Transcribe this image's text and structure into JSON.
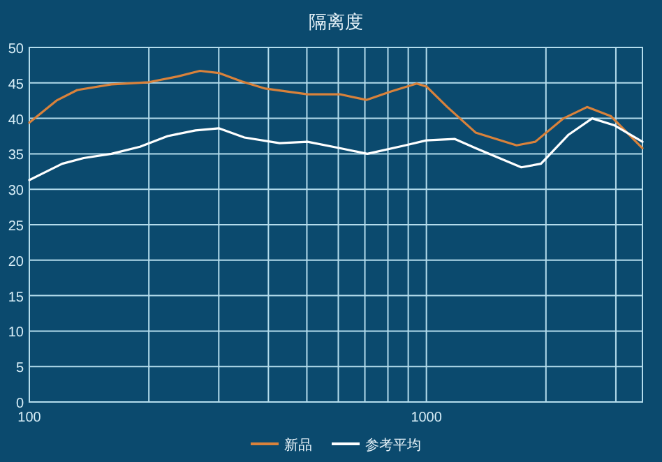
{
  "chart_data": {
    "type": "line",
    "title": "隔离度",
    "log": "x",
    "grid": true,
    "legend": "bottom",
    "marker": "none",
    "xlim": [
      100,
      3500
    ],
    "ylim": [
      0,
      50
    ],
    "xticks": [
      100,
      {
        "value": 200,
        "label": null
      },
      {
        "value": 300,
        "label": null
      },
      {
        "value": 400,
        "label": null
      },
      {
        "value": 500,
        "label": null
      },
      {
        "value": 600,
        "label": null
      },
      {
        "value": 700,
        "label": null
      },
      {
        "value": 800,
        "label": null
      },
      {
        "value": 900,
        "label": null
      },
      1000,
      {
        "value": 2000,
        "label": null
      },
      {
        "value": 3000,
        "label": null
      }
    ],
    "yticks": [
      0,
      5,
      10,
      15,
      20,
      25,
      30,
      35,
      40,
      45,
      50
    ],
    "series": [
      {
        "name": "新品",
        "color": "#d9823b",
        "x": [
          100,
          117,
          132,
          161,
          200,
          236,
          269,
          300,
          343,
          393,
          502,
          605,
          706,
          815,
          945,
          1000,
          1129,
          1330,
          1687,
          1880,
          2215,
          2538,
          2916,
          3500
        ],
        "values": [
          39.4,
          42.5,
          44.0,
          44.8,
          45.1,
          45.9,
          46.7,
          46.4,
          45.2,
          44.2,
          43.4,
          43.4,
          42.6,
          43.8,
          44.9,
          44.5,
          41.6,
          38.0,
          36.2,
          36.7,
          40.0,
          41.6,
          40.3,
          35.8
        ]
      },
      {
        "name": "参考平均",
        "color": "#ffffff",
        "x": [
          100,
          121,
          137,
          161,
          190,
          223,
          262,
          300,
          348,
          427,
          502,
          605,
          710,
          885,
          1000,
          1177,
          1330,
          1734,
          1943,
          2281,
          2615,
          2981,
          3500
        ],
        "values": [
          31.3,
          33.6,
          34.4,
          35.0,
          36.0,
          37.5,
          38.3,
          38.6,
          37.3,
          36.5,
          36.7,
          35.8,
          35.0,
          36.2,
          36.9,
          37.1,
          35.8,
          33.1,
          33.6,
          37.7,
          40.0,
          39.0,
          36.7
        ]
      }
    ]
  }
}
